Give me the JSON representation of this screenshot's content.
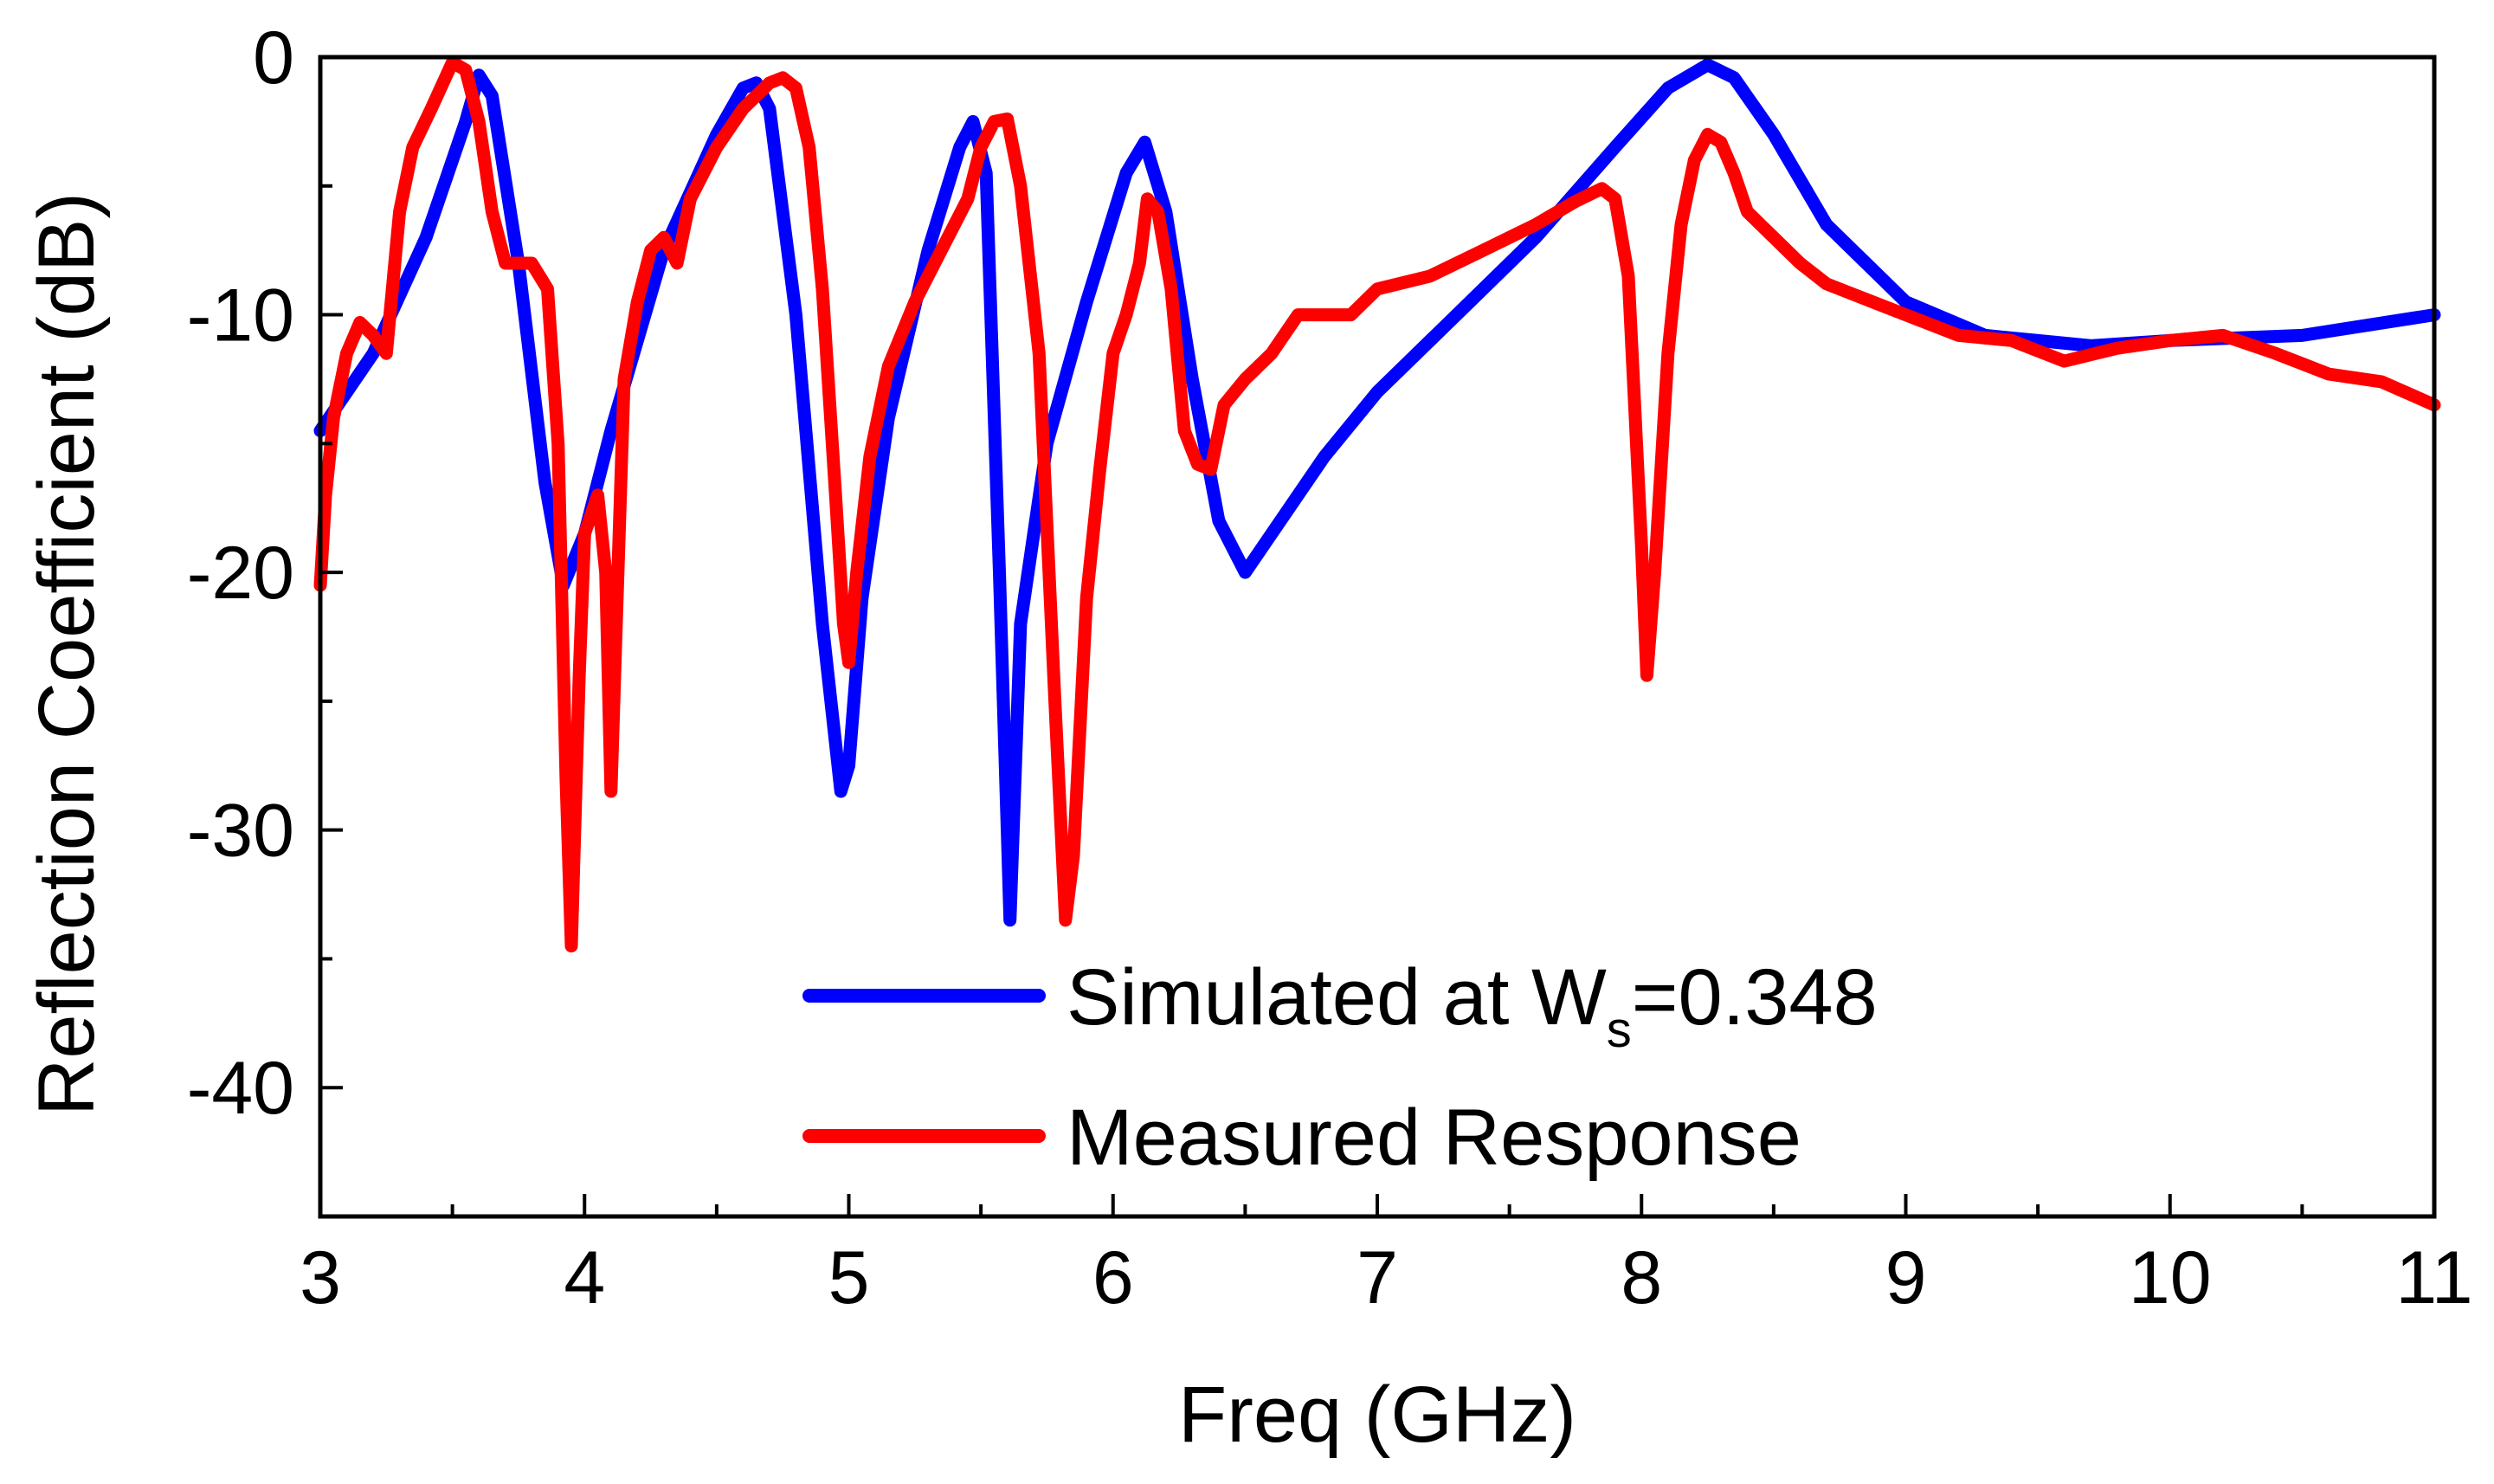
{
  "chart_data": {
    "type": "line",
    "xlabel": "Freq (GHz)",
    "ylabel": "Reflection Coefficient (dB)",
    "xlim": [
      3,
      11
    ],
    "ylim": [
      -45,
      0
    ],
    "xticks": [
      3,
      4,
      5,
      6,
      7,
      8,
      9,
      10,
      11
    ],
    "yticks": [
      0,
      -10,
      -20,
      -30,
      -40
    ],
    "legend_position": "bottom-center",
    "series": [
      {
        "name": "Simulated at W",
        "name_subscript": "s",
        "name_suffix": "=0.348",
        "color": "#0000ff",
        "x": [
          3.0,
          3.2,
          3.4,
          3.55,
          3.6,
          3.65,
          3.75,
          3.85,
          3.92,
          4.0,
          4.1,
          4.3,
          4.5,
          4.6,
          4.65,
          4.7,
          4.8,
          4.9,
          4.97,
          5.0,
          5.05,
          5.15,
          5.3,
          5.42,
          5.47,
          5.52,
          5.57,
          5.61,
          5.65,
          5.75,
          5.9,
          6.05,
          6.12,
          6.2,
          6.3,
          6.4,
          6.5,
          6.6,
          6.8,
          7.0,
          7.3,
          7.6,
          7.9,
          8.1,
          8.25,
          8.35,
          8.5,
          8.7,
          9.0,
          9.3,
          9.7,
          10.0,
          10.5,
          11.0
        ],
        "y": [
          -14.5,
          -11.5,
          -7.0,
          -2.5,
          -0.7,
          -1.5,
          -8.0,
          -16.5,
          -20.5,
          -18.5,
          -14.5,
          -7.5,
          -3.0,
          -1.2,
          -1.0,
          -2.0,
          -10.0,
          -22.0,
          -28.5,
          -27.5,
          -21.0,
          -14.0,
          -7.5,
          -3.5,
          -2.5,
          -4.5,
          -20.0,
          -33.5,
          -22.0,
          -15.0,
          -9.5,
          -4.5,
          -3.3,
          -6.0,
          -12.5,
          -18.0,
          -20.0,
          -18.5,
          -15.5,
          -13.0,
          -10.0,
          -7.0,
          -3.5,
          -1.2,
          -0.3,
          -0.8,
          -3.0,
          -6.5,
          -9.5,
          -10.8,
          -11.2,
          -11.0,
          -10.8,
          -10.0
        ]
      },
      {
        "name": "Measured Response",
        "color": "#ff0000",
        "x": [
          3.0,
          3.02,
          3.05,
          3.1,
          3.15,
          3.2,
          3.25,
          3.3,
          3.35,
          3.42,
          3.5,
          3.55,
          3.6,
          3.65,
          3.7,
          3.75,
          3.8,
          3.86,
          3.9,
          3.93,
          3.95,
          3.98,
          4.0,
          4.05,
          4.08,
          4.1,
          4.12,
          4.15,
          4.2,
          4.25,
          4.3,
          4.35,
          4.4,
          4.5,
          4.6,
          4.7,
          4.75,
          4.8,
          4.85,
          4.9,
          4.95,
          4.98,
          5.0,
          5.03,
          5.08,
          5.15,
          5.25,
          5.35,
          5.45,
          5.5,
          5.55,
          5.6,
          5.65,
          5.72,
          5.78,
          5.82,
          5.85,
          5.9,
          5.95,
          6.0,
          6.05,
          6.1,
          6.13,
          6.17,
          6.22,
          6.27,
          6.32,
          6.37,
          6.42,
          6.5,
          6.6,
          6.7,
          6.8,
          6.9,
          7.0,
          7.2,
          7.4,
          7.6,
          7.75,
          7.85,
          7.9,
          7.95,
          8.0,
          8.02,
          8.05,
          8.1,
          8.15,
          8.2,
          8.25,
          8.3,
          8.35,
          8.4,
          8.5,
          8.6,
          8.7,
          8.8,
          9.0,
          9.2,
          9.4,
          9.6,
          9.8,
          10.0,
          10.2,
          10.4,
          10.6,
          10.8,
          11.0
        ],
        "y": [
          -20.5,
          -17.0,
          -14.0,
          -11.5,
          -10.3,
          -10.8,
          -11.5,
          -6.0,
          -3.5,
          -2.0,
          -0.2,
          -0.5,
          -2.5,
          -6.0,
          -8.0,
          -8.0,
          -8.0,
          -9.0,
          -15.0,
          -28.0,
          -34.5,
          -24.0,
          -18.5,
          -17.0,
          -20.0,
          -28.5,
          -22.0,
          -12.5,
          -9.5,
          -7.5,
          -7.0,
          -8.0,
          -5.5,
          -3.5,
          -2.0,
          -1.0,
          -0.8,
          -1.2,
          -3.5,
          -9.0,
          -17.0,
          -22.0,
          -23.5,
          -20.0,
          -15.5,
          -12.0,
          -9.5,
          -7.5,
          -5.5,
          -3.5,
          -2.5,
          -2.4,
          -5.0,
          -11.5,
          -25.0,
          -33.5,
          -31.0,
          -21.0,
          -16.0,
          -11.5,
          -10.0,
          -8.0,
          -5.5,
          -6.0,
          -9.0,
          -14.5,
          -15.8,
          -16.0,
          -13.5,
          -12.5,
          -11.5,
          -10.0,
          -10.0,
          -10.0,
          -9.0,
          -8.5,
          -7.5,
          -6.5,
          -5.6,
          -5.1,
          -5.5,
          -8.5,
          -19.0,
          -24.0,
          -20.0,
          -11.5,
          -6.5,
          -4.0,
          -3.0,
          -3.3,
          -4.5,
          -6.0,
          -7.0,
          -8.0,
          -8.8,
          -9.2,
          -10.0,
          -10.8,
          -11.0,
          -11.8,
          -11.3,
          -11.0,
          -10.8,
          -11.5,
          -12.3,
          -12.6,
          -13.5
        ]
      }
    ]
  }
}
